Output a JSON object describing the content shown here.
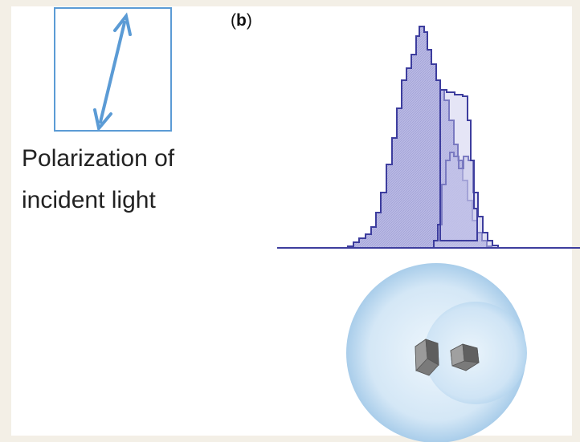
{
  "panel_label": {
    "open": "(",
    "letter": "b",
    "close": ")"
  },
  "polarization_caption": {
    "line1": "Polarization of",
    "line2": "incident light"
  }
}
